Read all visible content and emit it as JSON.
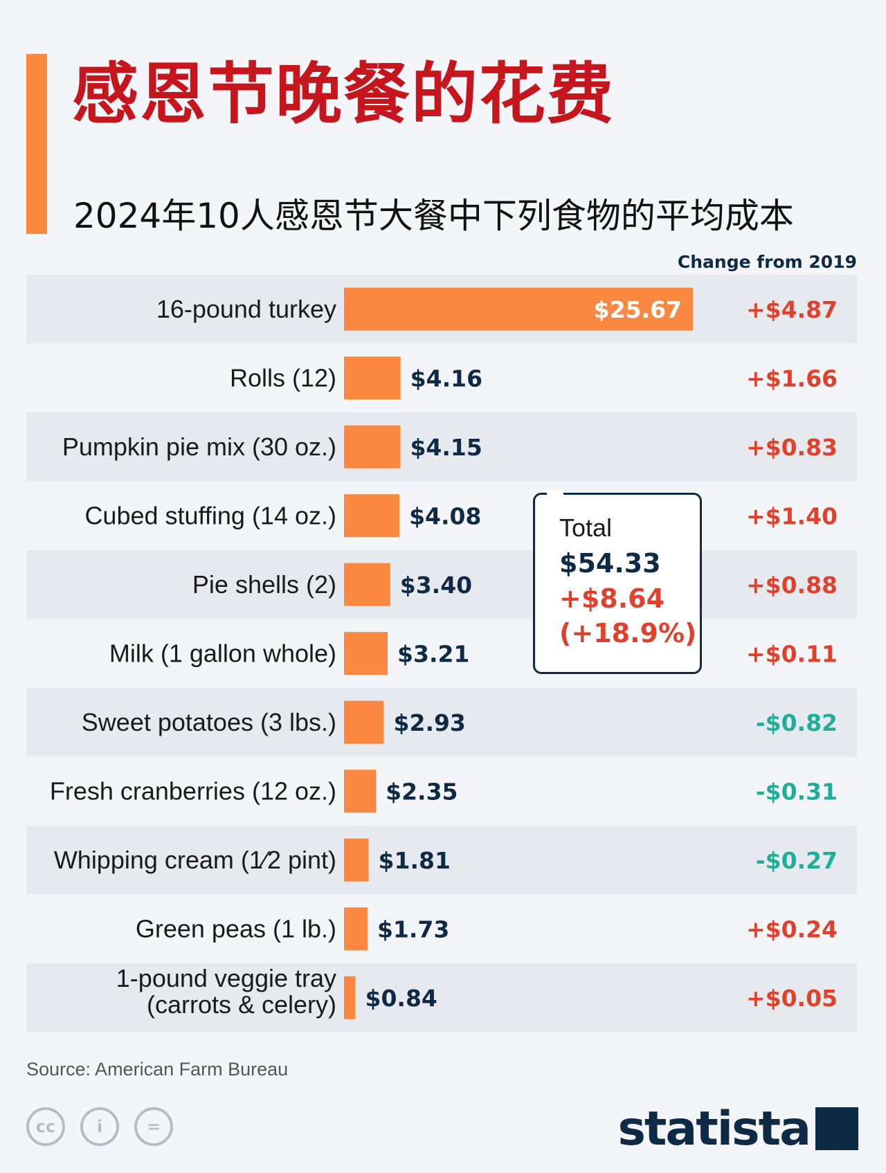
{
  "header": {
    "title": "感恩节晚餐的花费",
    "subtitle": "2024年10人感恩节大餐中下列食物的平均成本"
  },
  "colors": {
    "accent": "#fa8840",
    "title_red": "#c4161c",
    "positive_change": "#e0412c",
    "negative_change": "#1fae9a",
    "navy": "#0f2a44",
    "stripe": "#e6e9ee"
  },
  "chart_data": {
    "type": "bar",
    "orientation": "horizontal",
    "change_header": "Change from 2019",
    "categories": [
      "16-pound turkey",
      "Rolls (12)",
      "Pumpkin pie mix (30 oz.)",
      "Cubed stuffing (14 oz.)",
      "Pie shells (2)",
      "Milk (1 gallon whole)",
      "Sweet potatoes (3 lbs.)",
      "Fresh cranberries (12 oz.)",
      "Whipping cream (1⁄2 pint)",
      "Green peas (1 lb.)",
      "1-pound veggie tray\n(carrots & celery)"
    ],
    "values": [
      25.67,
      4.16,
      4.15,
      4.08,
      3.4,
      3.21,
      2.93,
      2.35,
      1.81,
      1.73,
      0.84
    ],
    "value_labels": [
      "$25.67",
      "$4.16",
      "$4.15",
      "$4.08",
      "$3.40",
      "$3.21",
      "$2.93",
      "$2.35",
      "$1.81",
      "$1.73",
      "$0.84"
    ],
    "changes": [
      4.87,
      1.66,
      0.83,
      1.4,
      0.88,
      0.11,
      -0.82,
      -0.31,
      -0.27,
      0.24,
      0.05
    ],
    "change_labels": [
      "+$4.87",
      "+$1.66",
      "+$0.83",
      "+$1.40",
      "+$0.88",
      "+$0.11",
      "-$0.82",
      "-$0.31",
      "-$0.27",
      "+$0.24",
      "+$0.05"
    ],
    "xlim": [
      0,
      25.67
    ],
    "grid": false,
    "legend": "none"
  },
  "total": {
    "label": "Total",
    "value": "$54.33",
    "change": "+$8.64",
    "percent": "(+18.9%)"
  },
  "footer": {
    "source": "Source: American Farm Bureau",
    "license_icons": [
      "cc-icon",
      "attribution-icon",
      "no-derivatives-icon"
    ],
    "license_glyphs": [
      "cc",
      "i",
      "="
    ],
    "logo": "statista"
  }
}
